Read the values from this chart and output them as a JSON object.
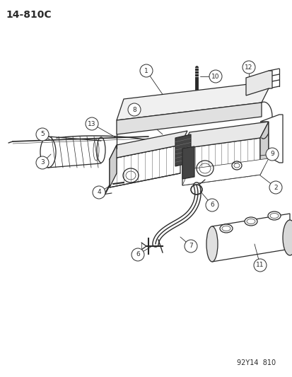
{
  "bg_color": "#ffffff",
  "diagram_id": "14-810C",
  "watermark": "92Y14  810",
  "title_fontsize": 10,
  "watermark_fontsize": 7,
  "fig_width": 4.14,
  "fig_height": 5.33,
  "dpi": 100,
  "gray": "#2a2a2a",
  "light_gray": "#888888",
  "dark_fill": "#555555"
}
